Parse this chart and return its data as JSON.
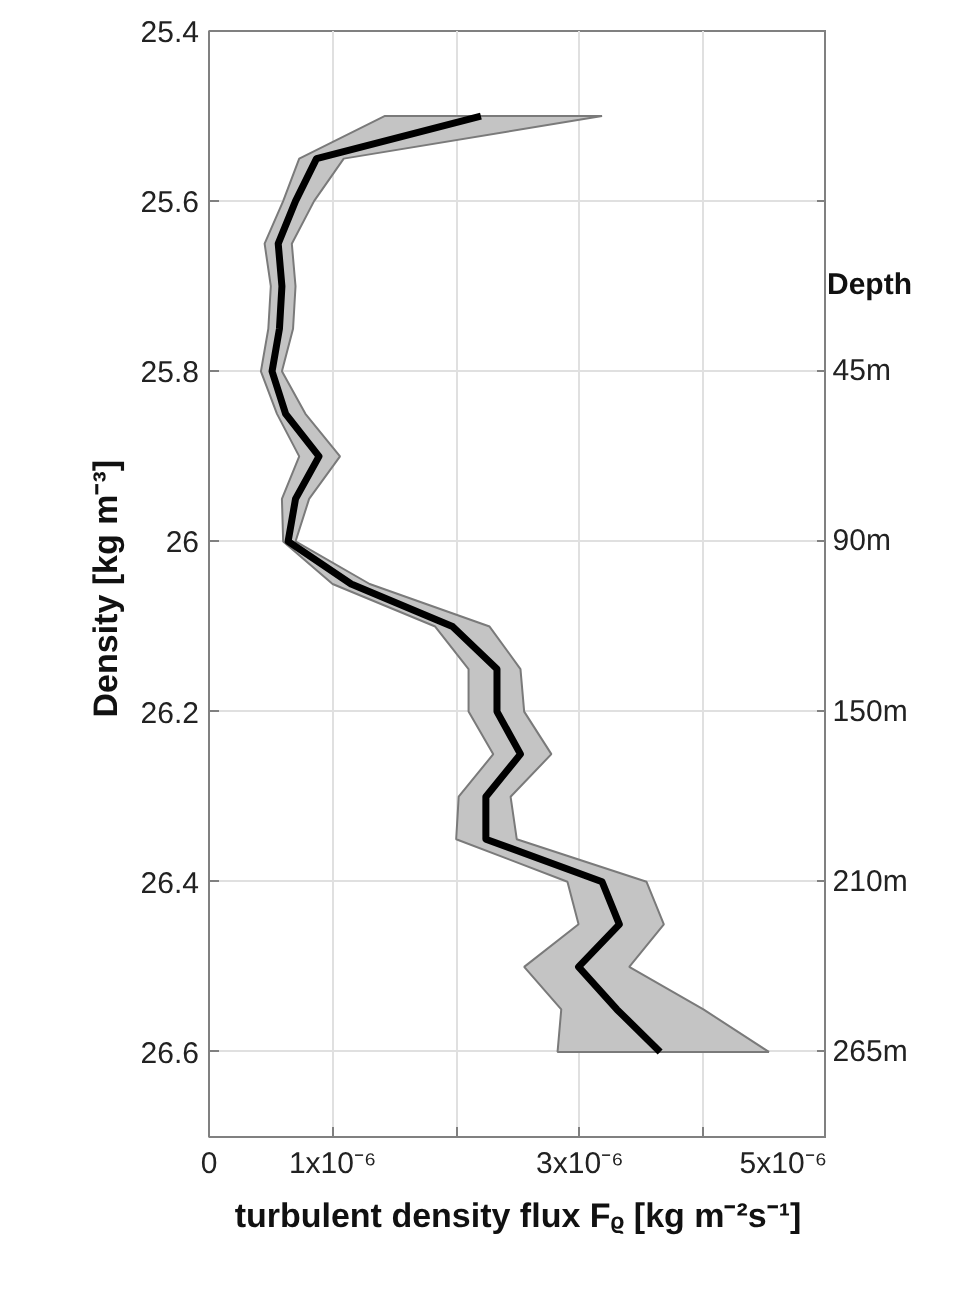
{
  "chart_data": {
    "type": "line",
    "orientation": "horizontal",
    "xlabel": "turbulent density flux Fᵨ [kg m⁻²s⁻¹]",
    "ylabel": "Density  [kg m⁻³]",
    "y2label": "Depth",
    "xlim": [
      0,
      5e-06
    ],
    "xticks": [
      0,
      {
        "value": 1e-06,
        "label": "1x10⁻⁶"
      },
      {
        "value": 2e-06,
        "label": null
      },
      {
        "value": 3e-06,
        "label": "3x10⁻⁶"
      },
      {
        "value": 4e-06,
        "label": null
      },
      {
        "value": 5e-06,
        "label": "5x10⁻⁶"
      }
    ],
    "ylim": [
      26.7,
      25.4
    ],
    "yticks": [
      25.4,
      25.6,
      25.8,
      26,
      26.2,
      26.4,
      26.6
    ],
    "annotations": [
      "45m",
      "90m",
      "150m",
      "210m",
      "265m"
    ],
    "grid": true,
    "line_style": "solid",
    "series": [
      {
        "color": "#000000",
        "x": [
          25.5,
          25.55,
          25.6,
          25.65,
          25.7,
          25.75,
          25.8,
          25.85,
          25.9,
          25.95,
          26.0,
          26.05,
          26.1,
          26.15,
          26.2,
          26.25,
          26.3,
          26.35,
          26.4,
          26.45,
          26.5,
          26.55,
          26.6
        ],
        "values": [
          2.2e-06,
          8.7e-07,
          7e-07,
          5.6e-07,
          5.9e-07,
          5.7e-07,
          5.1e-07,
          6.2e-07,
          8.9e-07,
          7e-07,
          6.4e-07,
          1.15e-06,
          1.97e-06,
          2.33e-06,
          2.33e-06,
          2.52e-06,
          2.24e-06,
          2.24e-06,
          3.18e-06,
          3.32e-06,
          2.99e-06,
          3.3e-06,
          3.65e-06
        ],
        "lower": [
          1.42e-06,
          7.3e-07,
          6e-07,
          4.5e-07,
          5e-07,
          4.8e-07,
          4.2e-07,
          5.5e-07,
          7.3e-07,
          5.9e-07,
          6e-07,
          1e-06,
          1.83e-06,
          2.1e-06,
          2.1e-06,
          2.3e-06,
          2.02e-06,
          2e-06,
          2.9e-06,
          2.99e-06,
          2.55e-06,
          2.85e-06,
          2.82e-06
        ],
        "upper": [
          3.18e-06,
          1.09e-06,
          8.5e-07,
          6.7e-07,
          7e-07,
          6.8e-07,
          5.9e-07,
          7.8e-07,
          1.06e-06,
          8.1e-07,
          7e-07,
          1.3e-06,
          2.27e-06,
          2.52e-06,
          2.55e-06,
          2.77e-06,
          2.44e-06,
          2.49e-06,
          3.54e-06,
          3.68e-06,
          3.4e-06,
          4e-06,
          4.53e-06
        ]
      }
    ]
  }
}
